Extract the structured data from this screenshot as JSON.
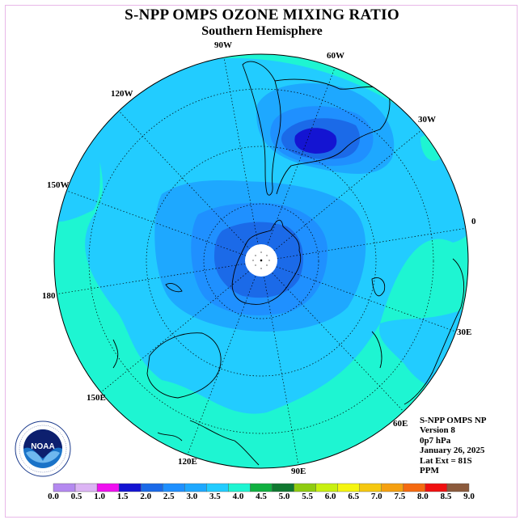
{
  "title": "S-NPP OMPS OZONE MIXING RATIO",
  "subtitle": "Southern Hemisphere",
  "longitude_labels": [
    "90W",
    "60W",
    "30W",
    "0",
    "30E",
    "60E",
    "90E",
    "120E",
    "150E",
    "180",
    "150W",
    "120W"
  ],
  "info": {
    "instrument": "S-NPP OMPS NP",
    "version": "Version 8",
    "level": "0p7 hPa",
    "date": "January 26, 2025",
    "lat_ext": "Lat Ext = 81S",
    "units": "PPM"
  },
  "colorbar": {
    "labels": [
      "0.0",
      "0.5",
      "1.0",
      "1.5",
      "2.0",
      "2.5",
      "3.0",
      "3.5",
      "4.0",
      "4.5",
      "5.0",
      "5.5",
      "6.0",
      "6.5",
      "7.0",
      "7.5",
      "8.0",
      "8.5",
      "9.0"
    ],
    "colors": [
      "#b489f0",
      "#dcb4f4",
      "#f010f0",
      "#1414d2",
      "#1b6ae8",
      "#1f90ff",
      "#1ea8ff",
      "#22ccff",
      "#1ef5d2",
      "#10b040",
      "#107830",
      "#8fcc10",
      "#c8f010",
      "#f5f510",
      "#f5c810",
      "#f5a010",
      "#f56a10",
      "#f01010",
      "#8b5a3c"
    ]
  },
  "logo": {
    "text": "NOAA",
    "ring_text": "NATIONAL OCEANIC AND ATMOSPHERIC ADMINISTRATION · U.S. DEPARTMENT OF COMMERCE"
  },
  "map_colors": {
    "ocean_low": "#1ef5d2",
    "mid": "#22ccff",
    "upper": "#1ea8ff",
    "inner": "#1f90ff",
    "core": "#1b6ae8",
    "max": "#1414d2"
  }
}
